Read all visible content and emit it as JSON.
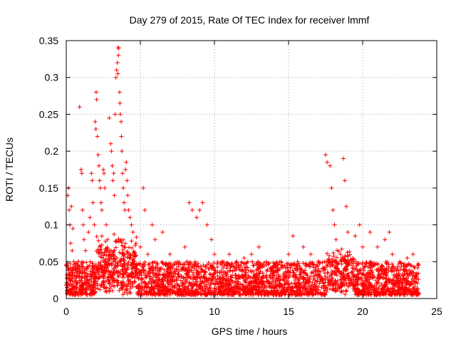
{
  "chart_data": {
    "type": "scatter",
    "title": "Day 279 of 2015, Rate Of TEC Index for receiver lmmf",
    "xlabel": "GPS time / hours",
    "ylabel": "ROTI / TECUs",
    "xlim": [
      0,
      25
    ],
    "ylim": [
      0,
      0.35
    ],
    "xticks": [
      0,
      5,
      10,
      15,
      20,
      25
    ],
    "xtick_labels": [
      "0",
      "5",
      "10",
      "15",
      "20",
      "25"
    ],
    "yticks": [
      0,
      0.05,
      0.1,
      0.15,
      0.2,
      0.25,
      0.3,
      0.35
    ],
    "ytick_labels": [
      "0",
      "0.05",
      "0.1",
      "0.15",
      "0.2",
      "0.25",
      "0.3",
      "0.35"
    ],
    "grid": true,
    "marker": "+",
    "color": "#ff0000",
    "series": [
      {
        "name": "ROTI",
        "points": [
          [
            0.05,
            0.015
          ],
          [
            0.1,
            0.14
          ],
          [
            0.15,
            0.15
          ],
          [
            0.2,
            0.12
          ],
          [
            0.25,
            0.1
          ],
          [
            0.3,
            0.075
          ],
          [
            0.35,
            0.125
          ],
          [
            0.4,
            0.065
          ],
          [
            0.45,
            0.095
          ],
          [
            0.5,
            0.05
          ],
          [
            0.6,
            0.04
          ],
          [
            0.7,
            0.03
          ],
          [
            0.8,
            0.05
          ],
          [
            0.9,
            0.26
          ],
          [
            1.0,
            0.175
          ],
          [
            1.05,
            0.17
          ],
          [
            1.1,
            0.12
          ],
          [
            1.15,
            0.1
          ],
          [
            1.2,
            0.08
          ],
          [
            1.3,
            0.065
          ],
          [
            1.4,
            0.04
          ],
          [
            1.5,
            0.09
          ],
          [
            1.6,
            0.11
          ],
          [
            1.7,
            0.17
          ],
          [
            1.75,
            0.16
          ],
          [
            1.8,
            0.13
          ],
          [
            1.9,
            0.1
          ],
          [
            1.95,
            0.24
          ],
          [
            2.0,
            0.23
          ],
          [
            2.02,
            0.28
          ],
          [
            2.05,
            0.27
          ],
          [
            2.1,
            0.22
          ],
          [
            2.15,
            0.195
          ],
          [
            2.2,
            0.18
          ],
          [
            2.25,
            0.16
          ],
          [
            2.3,
            0.15
          ],
          [
            2.35,
            0.13
          ],
          [
            2.4,
            0.12
          ],
          [
            2.5,
            0.175
          ],
          [
            2.55,
            0.17
          ],
          [
            2.6,
            0.15
          ],
          [
            2.7,
            0.1
          ],
          [
            2.8,
            0.08
          ],
          [
            2.9,
            0.245
          ],
          [
            3.0,
            0.21
          ],
          [
            3.05,
            0.2
          ],
          [
            3.1,
            0.18
          ],
          [
            3.15,
            0.16
          ],
          [
            3.2,
            0.17
          ],
          [
            3.25,
            0.14
          ],
          [
            3.3,
            0.25
          ],
          [
            3.35,
            0.3
          ],
          [
            3.4,
            0.31
          ],
          [
            3.45,
            0.32
          ],
          [
            3.5,
            0.34
          ],
          [
            3.55,
            0.34
          ],
          [
            3.52,
            0.33
          ],
          [
            3.48,
            0.305
          ],
          [
            3.6,
            0.28
          ],
          [
            3.62,
            0.265
          ],
          [
            3.65,
            0.25
          ],
          [
            3.7,
            0.24
          ],
          [
            3.72,
            0.22
          ],
          [
            3.75,
            0.2
          ],
          [
            3.8,
            0.17
          ],
          [
            3.85,
            0.15
          ],
          [
            3.9,
            0.13
          ],
          [
            3.95,
            0.12
          ],
          [
            4.0,
            0.175
          ],
          [
            4.05,
            0.185
          ],
          [
            4.1,
            0.16
          ],
          [
            4.15,
            0.14
          ],
          [
            4.2,
            0.12
          ],
          [
            4.3,
            0.11
          ],
          [
            4.4,
            0.1
          ],
          [
            4.5,
            0.09
          ],
          [
            4.7,
            0.075
          ],
          [
            5.0,
            0.07
          ],
          [
            5.2,
            0.15
          ],
          [
            5.3,
            0.12
          ],
          [
            5.5,
            0.06
          ],
          [
            5.8,
            0.1
          ],
          [
            6.0,
            0.08
          ],
          [
            6.5,
            0.09
          ],
          [
            7.0,
            0.06
          ],
          [
            7.5,
            0.05
          ],
          [
            8.0,
            0.07
          ],
          [
            8.3,
            0.13
          ],
          [
            8.5,
            0.12
          ],
          [
            8.8,
            0.11
          ],
          [
            9.0,
            0.12
          ],
          [
            9.2,
            0.13
          ],
          [
            9.5,
            0.1
          ],
          [
            9.8,
            0.08
          ],
          [
            10.0,
            0.06
          ],
          [
            10.5,
            0.05
          ],
          [
            11.0,
            0.06
          ],
          [
            11.5,
            0.05
          ],
          [
            12.0,
            0.055
          ],
          [
            12.5,
            0.06
          ],
          [
            13.0,
            0.07
          ],
          [
            13.5,
            0.05
          ],
          [
            14.0,
            0.045
          ],
          [
            14.5,
            0.05
          ],
          [
            15.0,
            0.06
          ],
          [
            15.3,
            0.085
          ],
          [
            15.6,
            0.05
          ],
          [
            16.0,
            0.07
          ],
          [
            16.5,
            0.06
          ],
          [
            17.0,
            0.05
          ],
          [
            17.5,
            0.195
          ],
          [
            17.6,
            0.185
          ],
          [
            17.8,
            0.18
          ],
          [
            17.9,
            0.15
          ],
          [
            18.0,
            0.12
          ],
          [
            18.1,
            0.1
          ],
          [
            18.2,
            0.08
          ],
          [
            18.5,
            0.06
          ],
          [
            18.7,
            0.19
          ],
          [
            18.8,
            0.16
          ],
          [
            18.9,
            0.125
          ],
          [
            19.0,
            0.09
          ],
          [
            19.5,
            0.085
          ],
          [
            19.8,
            0.1
          ],
          [
            20.0,
            0.07
          ],
          [
            20.5,
            0.09
          ],
          [
            21.0,
            0.07
          ],
          [
            21.5,
            0.08
          ],
          [
            21.8,
            0.09
          ],
          [
            22.0,
            0.06
          ],
          [
            22.5,
            0.05
          ],
          [
            23.0,
            0.055
          ],
          [
            23.4,
            0.06
          ],
          [
            23.7,
            0.045
          ]
        ]
      }
    ],
    "dense_band": {
      "x_range": [
        0,
        23.8
      ],
      "y_range": [
        0.005,
        0.05
      ]
    }
  }
}
